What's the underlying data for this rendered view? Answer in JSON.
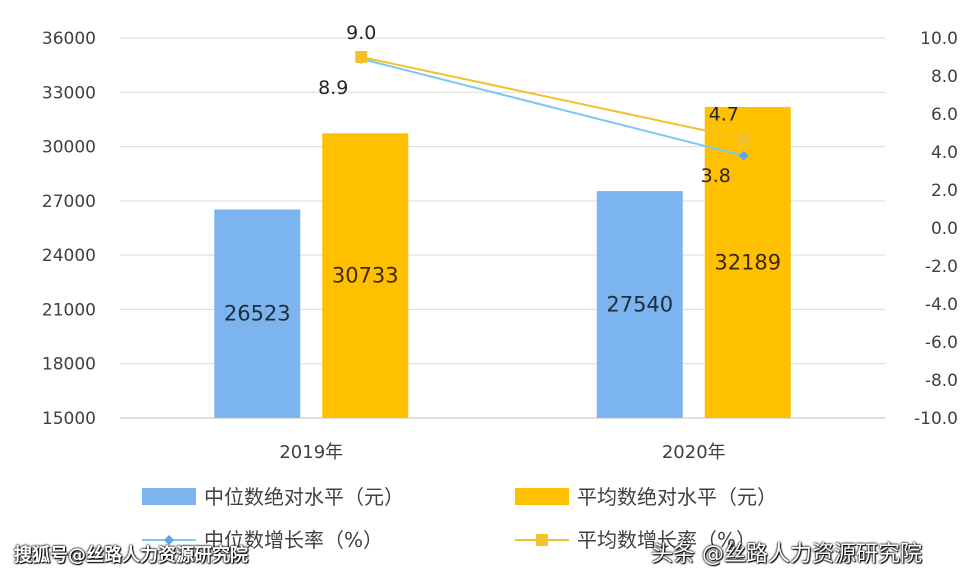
{
  "chart_data": {
    "type": "bar",
    "categories": [
      "2019年",
      "2020年"
    ],
    "series": [
      {
        "name": "中位数绝对水平（元）",
        "kind": "bar",
        "axis": "left",
        "color": "#7cb4ef",
        "values": [
          26523,
          27540
        ]
      },
      {
        "name": "平均数绝对水平（元）",
        "kind": "bar",
        "axis": "left",
        "color": "#ffc000",
        "values": [
          30733,
          32189
        ]
      },
      {
        "name": "中位数增长率（%）",
        "kind": "line",
        "axis": "right",
        "color": "#7cc8ee",
        "values": [
          8.9,
          3.8
        ],
        "labels": [
          "8.9",
          "3.8"
        ]
      },
      {
        "name": "平均数增长率（%）",
        "kind": "line",
        "axis": "right",
        "color": "#f2c12e",
        "values": [
          9.0,
          4.7
        ],
        "labels": [
          "9.0",
          "4.7"
        ]
      }
    ],
    "bar_labels": [
      [
        "26523",
        "27540"
      ],
      [
        "30733",
        "32189"
      ]
    ],
    "y_left": {
      "min": 15000,
      "max": 36000,
      "ticks": [
        "15000",
        "18000",
        "21000",
        "24000",
        "27000",
        "30000",
        "33000",
        "36000"
      ]
    },
    "y_right": {
      "min": -10,
      "max": 10,
      "ticks": [
        "-10.0",
        "-8.0",
        "-6.0",
        "-4.0",
        "-2.0",
        "0.0",
        "2.0",
        "4.0",
        "6.0",
        "8.0",
        "10.0"
      ]
    },
    "grid": true,
    "legend_position": "bottom"
  },
  "watermarks": {
    "left": "搜狐号@丝路人力资源研究院",
    "right": "头条 @丝路人力资源研究院"
  }
}
